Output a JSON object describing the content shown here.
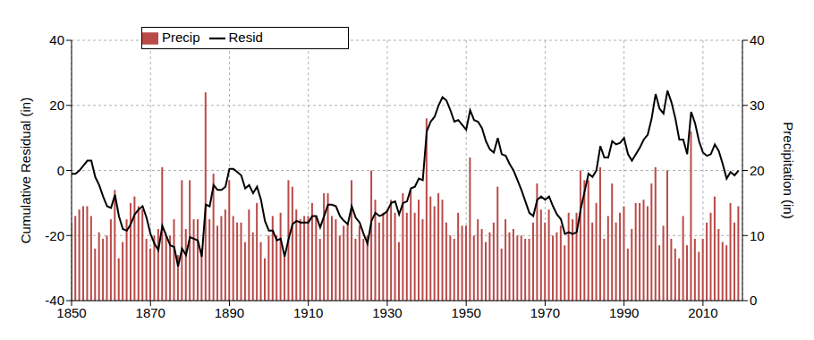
{
  "chart_data": {
    "type": "combo",
    "xlim": [
      1850,
      2020
    ],
    "xticks": [
      1850,
      1870,
      1890,
      1910,
      1930,
      1950,
      1970,
      1990,
      2010
    ],
    "ylim": [
      -40,
      40
    ],
    "yticks": [
      -40,
      -20,
      0,
      20,
      40
    ],
    "y2lim": [
      0,
      40
    ],
    "y2ticks": [
      0,
      10,
      20,
      30,
      40
    ],
    "y_label": "Cumulative Residual (in)",
    "y2_label": "Precipitation (in)",
    "grid": true,
    "legend": "upper left",
    "x": [
      1850,
      1851,
      1852,
      1853,
      1854,
      1855,
      1856,
      1857,
      1858,
      1859,
      1860,
      1861,
      1862,
      1863,
      1864,
      1865,
      1866,
      1867,
      1868,
      1869,
      1870,
      1871,
      1872,
      1873,
      1874,
      1875,
      1876,
      1877,
      1878,
      1879,
      1880,
      1881,
      1882,
      1883,
      1884,
      1885,
      1886,
      1887,
      1888,
      1889,
      1890,
      1891,
      1892,
      1893,
      1894,
      1895,
      1896,
      1897,
      1898,
      1899,
      1900,
      1901,
      1902,
      1903,
      1904,
      1905,
      1906,
      1907,
      1908,
      1909,
      1910,
      1911,
      1912,
      1913,
      1914,
      1915,
      1916,
      1917,
      1918,
      1919,
      1920,
      1921,
      1922,
      1923,
      1924,
      1925,
      1926,
      1927,
      1928,
      1929,
      1930,
      1931,
      1932,
      1933,
      1934,
      1935,
      1936,
      1937,
      1938,
      1939,
      1940,
      1941,
      1942,
      1943,
      1944,
      1945,
      1946,
      1947,
      1948,
      1949,
      1950,
      1951,
      1952,
      1953,
      1954,
      1955,
      1956,
      1957,
      1958,
      1959,
      1960,
      1961,
      1962,
      1963,
      1964,
      1965,
      1966,
      1967,
      1968,
      1969,
      1970,
      1971,
      1972,
      1973,
      1974,
      1975,
      1976,
      1977,
      1978,
      1979,
      1980,
      1981,
      1982,
      1983,
      1984,
      1985,
      1986,
      1987,
      1988,
      1989,
      1990,
      1991,
      1992,
      1993,
      1994,
      1995,
      1996,
      1997,
      1998,
      1999,
      2000,
      2001,
      2002,
      2003,
      2004,
      2005,
      2006,
      2007,
      2008,
      2009,
      2010,
      2011,
      2012,
      2013,
      2014,
      2015,
      2016,
      2017,
      2018,
      2019
    ],
    "series": [
      {
        "name": "Precip",
        "type": "bar",
        "axis": "y2",
        "color": "#b94a48",
        "values": [
          12,
          13,
          14,
          14.5,
          14.5,
          13,
          8,
          10.5,
          9.5,
          10,
          12.5,
          17,
          6.5,
          9,
          12.5,
          15,
          16,
          14.5,
          14,
          9.5,
          8,
          10,
          11,
          20.5,
          10,
          10,
          12.5,
          7,
          18.5,
          11,
          18.5,
          12.5,
          12.5,
          8,
          32,
          12.5,
          19.5,
          11.5,
          13,
          14,
          18.5,
          13,
          12,
          12,
          9,
          14,
          10.5,
          15,
          9,
          6.5,
          10,
          13,
          10,
          13.5,
          7.5,
          18.5,
          17.5,
          14,
          12.5,
          13,
          13,
          15,
          13,
          9.5,
          16.5,
          16.5,
          13,
          12.5,
          10,
          11.5,
          12,
          18.5,
          9.5,
          11.5,
          9.5,
          10,
          20,
          15.5,
          12,
          13.5,
          14,
          15.5,
          13.5,
          9,
          16.5,
          13.5,
          17,
          13.5,
          15.5,
          12.5,
          28,
          16,
          14.5,
          16.5,
          15.5,
          12,
          10,
          9.5,
          13.5,
          11.5,
          11.5,
          22,
          10,
          12.5,
          11,
          9,
          10.5,
          12,
          17.5,
          8,
          12.5,
          10.5,
          11,
          10,
          10,
          9.5,
          9.5,
          12,
          18,
          14,
          12,
          14,
          10,
          10.5,
          11.5,
          8.5,
          13.5,
          12.5,
          13.5,
          20,
          18.5,
          18.5,
          12,
          15,
          20.5,
          9.5,
          13,
          18,
          12,
          13.5,
          14.5,
          8,
          11,
          15,
          15,
          15.5,
          14.5,
          18,
          20.5,
          8.5,
          11.5,
          20,
          9.5,
          8,
          6.5,
          13,
          8.5,
          26,
          9.5,
          7.5,
          9.5,
          12,
          13.5,
          16,
          11,
          9,
          8.5,
          15,
          12,
          14.5
        ]
      },
      {
        "name": "Resid",
        "type": "line",
        "color": "#000000",
        "values": [
          -1,
          -1,
          0,
          1.5,
          3,
          3,
          -2,
          -4.5,
          -8,
          -11,
          -11.5,
          -7.5,
          -14,
          -18,
          -18.5,
          -16.5,
          -13.5,
          -12,
          -11,
          -14.5,
          -19.5,
          -22.5,
          -24.5,
          -17,
          -20,
          -23,
          -23.5,
          -29.5,
          -24,
          -26,
          -20.5,
          -21,
          -21.5,
          -26.5,
          -10.5,
          -11,
          -4.5,
          -6,
          -6,
          -5,
          0.5,
          0.5,
          -0.5,
          -1.5,
          -5.5,
          -4.5,
          -7,
          -5,
          -9,
          -15.5,
          -18.5,
          -18.5,
          -21.5,
          -21,
          -26.5,
          -21,
          -16.5,
          -15.5,
          -16,
          -16,
          -16,
          -14,
          -14,
          -17.5,
          -14,
          -10.5,
          -10.5,
          -11,
          -14,
          -15.5,
          -16.5,
          -11,
          -14.5,
          -16,
          -19.5,
          -22.5,
          -15.5,
          -13,
          -14,
          -13.5,
          -12.5,
          -10,
          -9.5,
          -13.5,
          -10,
          -9.5,
          -5.5,
          -5,
          -2.5,
          -3,
          12,
          15,
          16.5,
          20,
          22.5,
          21.5,
          18.5,
          15,
          15.5,
          14,
          12.5,
          18.5,
          15.5,
          15,
          13,
          9,
          6.5,
          5.5,
          10,
          5,
          4.5,
          2,
          0,
          -3,
          -6,
          -9.5,
          -13,
          -14,
          -9,
          -8,
          -9,
          -8,
          -11,
          -13.5,
          -15,
          -19.5,
          -19,
          -19.5,
          -19,
          -12,
          -6.5,
          -1,
          -2,
          0,
          7.5,
          4,
          4,
          9,
          8,
          8.5,
          10,
          5,
          3,
          5,
          7,
          9.5,
          11,
          16,
          23.5,
          19,
          17.5,
          24.5,
          21,
          16,
          9.5,
          9.5,
          5,
          18,
          14.5,
          9,
          5.5,
          4.5,
          5,
          8,
          6,
          2,
          -2.5,
          -0.5,
          -1.5,
          0
        ]
      }
    ]
  }
}
